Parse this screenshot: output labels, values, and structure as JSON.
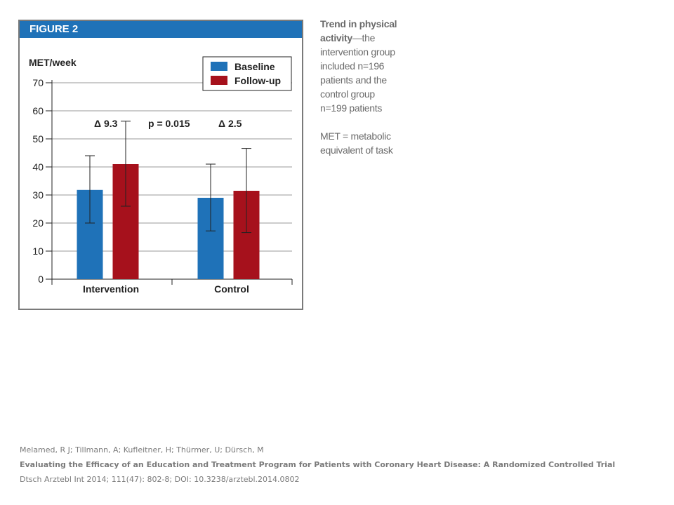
{
  "figure": {
    "label": "FIGURE 2"
  },
  "chart_data": {
    "type": "bar",
    "title": "",
    "ylabel": "MET/week",
    "xlabel": "",
    "ylim": [
      0,
      70
    ],
    "yticks": [
      0,
      10,
      20,
      30,
      40,
      50,
      60,
      70
    ],
    "grid": true,
    "legend_position": "top-right",
    "categories": [
      "Intervention",
      "Control"
    ],
    "series": [
      {
        "name": "Baseline",
        "color": "#1f72b8",
        "values": [
          31.8,
          29
        ],
        "error_low": [
          20,
          17.2
        ],
        "error_high": [
          44,
          41
        ]
      },
      {
        "name": "Follow-up",
        "color": "#a6111c",
        "values": [
          41,
          31.5
        ],
        "error_low": [
          26,
          16.6
        ],
        "error_high": [
          56.3,
          46.6
        ]
      }
    ],
    "annotations": {
      "delta_intervention": "Δ 9.3",
      "p_value": "p = 0.015",
      "delta_control": "Δ 2.5"
    }
  },
  "caption": {
    "title_part1": "Trend in physical",
    "title_part2": "activity",
    "text_lines": [
      "—the",
      "intervention group",
      "included n=196",
      "patients and the",
      "control group",
      "n=199 patients"
    ],
    "note_lines": [
      "MET = metabolic",
      "equivalent of task"
    ]
  },
  "citation": {
    "authors": "Melamed, R J; Tillmann, A; Kufleitner, H; Thürmer, U; Dürsch, M",
    "title": "Evaluating  the Efficacy  of an Education  and Treatment Program for Patients with Coronary Heart Disease:  A Randomized  Controlled Trial",
    "source": "Dtsch Arztebl Int 2014; 111(47): 802-8; DOI: 10.3238/arztebl.2014.0802"
  }
}
